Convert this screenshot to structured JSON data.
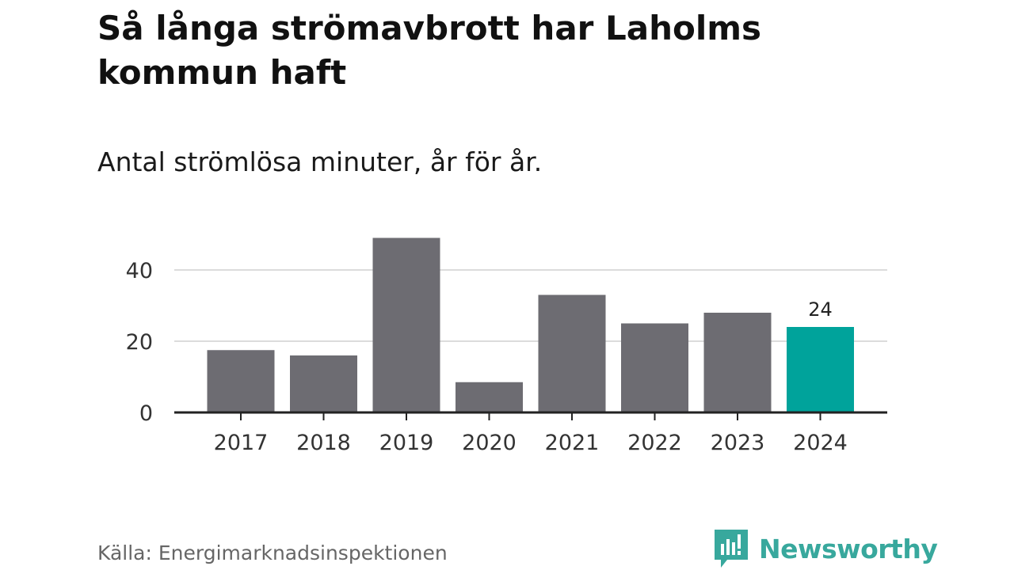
{
  "header": {
    "title": "Så långa strömavbrott har Laholms kommun haft",
    "subtitle": "Antal strömlösa minuter, år för år."
  },
  "footer": {
    "source": "Källa: Energimarknadsinspektionen",
    "brand": "Newsworthy"
  },
  "colors": {
    "bar": "#6d6c72",
    "highlight": "#00a39b",
    "grid": "#dcdcdc",
    "axis": "#222222",
    "brand": "#38a89d"
  },
  "chart_data": {
    "type": "bar",
    "categories": [
      "2017",
      "2018",
      "2019",
      "2020",
      "2021",
      "2022",
      "2023",
      "2024"
    ],
    "values": [
      17.5,
      16,
      49,
      8.5,
      33,
      25,
      28,
      24
    ],
    "highlight_index": 7,
    "data_labels": [
      null,
      null,
      null,
      null,
      null,
      null,
      null,
      "24"
    ],
    "yticks": [
      0,
      20,
      40
    ],
    "ylim": [
      0,
      50
    ],
    "grid": true,
    "xlabel": "",
    "ylabel": ""
  }
}
